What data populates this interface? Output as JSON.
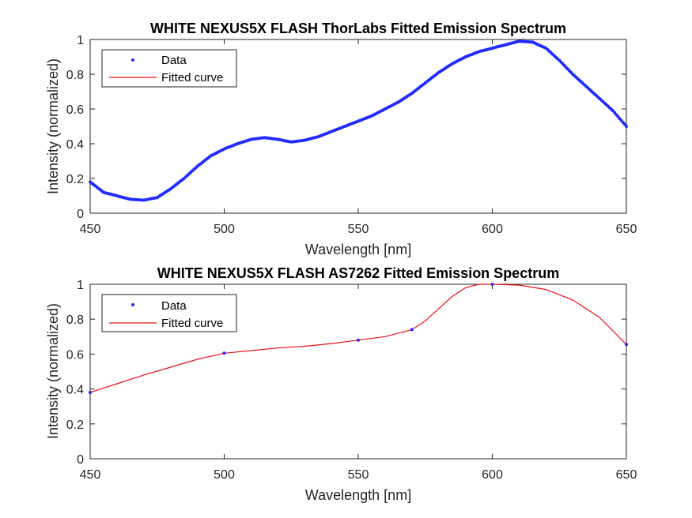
{
  "colors": {
    "data": "#1f2bff",
    "fit": "#e8111b",
    "axis": "#262626"
  },
  "chart_data": [
    {
      "type": "line",
      "title": "WHITE NEXUS5X FLASH ThorLabs Fitted Emission Spectrum",
      "xlabel": "Wavelength [nm]",
      "ylabel": "Intensity (normalized)",
      "xlim": [
        450,
        650
      ],
      "ylim": [
        0,
        1
      ],
      "xticks": [
        "450",
        "500",
        "550",
        "600",
        "650"
      ],
      "yticks": [
        "0",
        "0.2",
        "0.4",
        "0.6",
        "0.8",
        "1"
      ],
      "grid": false,
      "legend_position": "top-left",
      "series": [
        {
          "name": "Data",
          "marker": "dot",
          "x": [
            450,
            455,
            460,
            465,
            470,
            475,
            480,
            485,
            490,
            495,
            500,
            505,
            510,
            515,
            520,
            525,
            530,
            535,
            540,
            545,
            550,
            555,
            560,
            565,
            570,
            575,
            580,
            585,
            590,
            595,
            600,
            605,
            610,
            615,
            620,
            625,
            630,
            635,
            640,
            645,
            650
          ],
          "values": [
            0.18,
            0.12,
            0.1,
            0.08,
            0.075,
            0.09,
            0.14,
            0.2,
            0.27,
            0.33,
            0.37,
            0.4,
            0.425,
            0.435,
            0.425,
            0.41,
            0.42,
            0.44,
            0.47,
            0.5,
            0.53,
            0.56,
            0.6,
            0.64,
            0.69,
            0.75,
            0.81,
            0.86,
            0.9,
            0.93,
            0.95,
            0.97,
            0.99,
            0.985,
            0.95,
            0.88,
            0.8,
            0.73,
            0.66,
            0.59,
            0.5
          ]
        },
        {
          "name": "Fitted curve",
          "marker": "line",
          "x": [
            450,
            455,
            460,
            465,
            470,
            475,
            480,
            485,
            490,
            495,
            500,
            505,
            510,
            515,
            520,
            525,
            530,
            535,
            540,
            545,
            550,
            555,
            560,
            565,
            570,
            575,
            580,
            585,
            590,
            595,
            600,
            605,
            610,
            615,
            620,
            625,
            630,
            635,
            640,
            645,
            650
          ],
          "values": [
            0.18,
            0.12,
            0.1,
            0.08,
            0.075,
            0.09,
            0.14,
            0.2,
            0.27,
            0.33,
            0.37,
            0.4,
            0.425,
            0.435,
            0.425,
            0.41,
            0.42,
            0.44,
            0.47,
            0.5,
            0.53,
            0.56,
            0.6,
            0.64,
            0.69,
            0.75,
            0.81,
            0.86,
            0.9,
            0.93,
            0.95,
            0.97,
            0.99,
            0.985,
            0.95,
            0.88,
            0.8,
            0.73,
            0.66,
            0.59,
            0.5
          ]
        }
      ]
    },
    {
      "type": "line",
      "title": "WHITE NEXUS5X FLASH AS7262 Fitted Emission Spectrum",
      "xlabel": "Wavelength [nm]",
      "ylabel": "Intensity (normalized)",
      "xlim": [
        450,
        650
      ],
      "ylim": [
        0,
        1
      ],
      "xticks": [
        "450",
        "500",
        "550",
        "600",
        "650"
      ],
      "yticks": [
        "0",
        "0.2",
        "0.4",
        "0.6",
        "0.8",
        "1"
      ],
      "grid": false,
      "legend_position": "top-left",
      "series": [
        {
          "name": "Data",
          "marker": "dot",
          "x": [
            450,
            500,
            550,
            570,
            600,
            650
          ],
          "values": [
            0.38,
            0.605,
            0.68,
            0.74,
            1.0,
            0.655
          ]
        },
        {
          "name": "Fitted curve",
          "marker": "line",
          "x": [
            450,
            460,
            470,
            480,
            490,
            500,
            510,
            520,
            530,
            540,
            550,
            560,
            570,
            575,
            580,
            585,
            590,
            595,
            600,
            610,
            620,
            630,
            640,
            650
          ],
          "values": [
            0.38,
            0.43,
            0.48,
            0.525,
            0.57,
            0.605,
            0.62,
            0.635,
            0.645,
            0.66,
            0.68,
            0.7,
            0.74,
            0.79,
            0.86,
            0.93,
            0.98,
            1.0,
            1.0,
            0.995,
            0.97,
            0.91,
            0.81,
            0.655
          ]
        }
      ]
    }
  ]
}
